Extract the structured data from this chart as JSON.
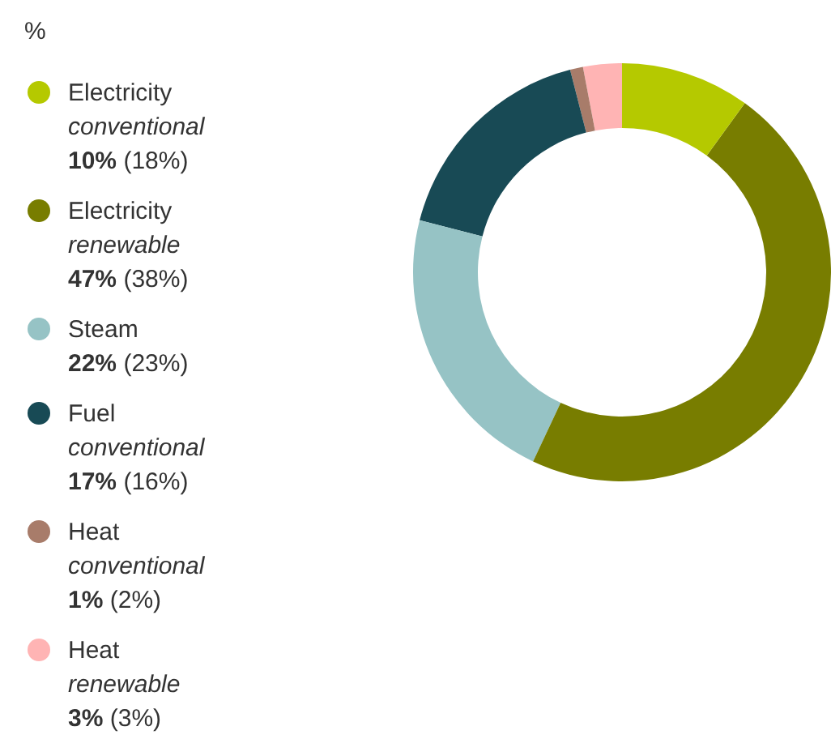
{
  "chart_data": {
    "type": "donut",
    "title": "%",
    "categories": [
      "Electricity conventional",
      "Electricity renewable",
      "Steam",
      "Fuel conventional",
      "Heat conventional",
      "Heat renewable"
    ],
    "values": [
      10,
      47,
      22,
      17,
      1,
      3
    ],
    "value_labels": [
      "10% (18%)",
      "47% (38%)",
      "22% (23%)",
      "17% (16%)",
      "1% (2%)",
      "3% (3%)"
    ],
    "colors": [
      "#b5c900",
      "#787d00",
      "#96c3c5",
      "#184a55",
      "#a87c6a",
      "#ffb4b4"
    ],
    "legend": "left"
  }
}
